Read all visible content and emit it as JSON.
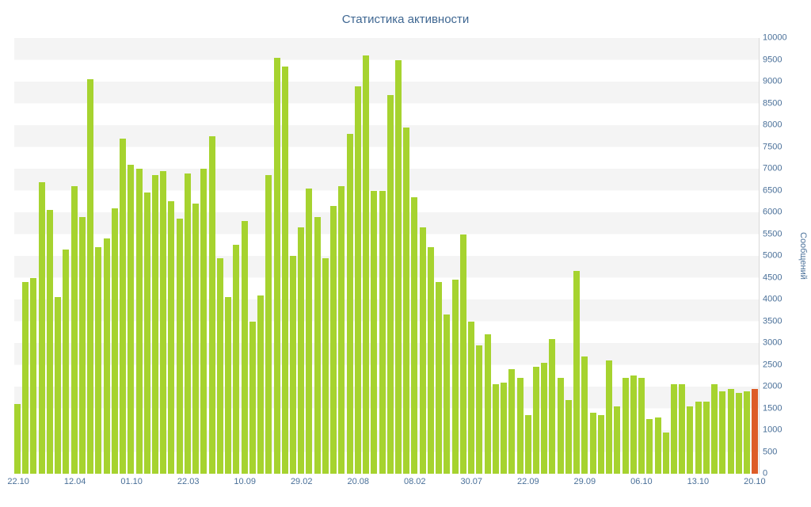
{
  "chart_data": {
    "type": "bar",
    "title": "Статистика активности",
    "ylabel": "Сообщений",
    "xlabel": "",
    "ylim": [
      0,
      10000
    ],
    "ytick_step": 500,
    "tick_every": 7,
    "x_tick_labels": [
      "22.10",
      "12.04",
      "01.10",
      "22.03",
      "10.09",
      "29.02",
      "20.08",
      "08.02",
      "30.07",
      "22.09",
      "29.09",
      "06.10",
      "13.10",
      "20.10"
    ],
    "values": [
      1600,
      4400,
      4500,
      6700,
      6050,
      4050,
      5150,
      6600,
      5900,
      9050,
      5200,
      5400,
      6100,
      7700,
      7100,
      7000,
      6450,
      6850,
      6950,
      6250,
      5850,
      6900,
      6200,
      7000,
      7750,
      4950,
      4050,
      5250,
      5800,
      3500,
      4100,
      6850,
      9550,
      9350,
      5000,
      5650,
      6550,
      5900,
      4950,
      6150,
      6600,
      7800,
      8900,
      9600,
      6500,
      6500,
      8700,
      9500,
      7950,
      6350,
      5650,
      5200,
      4400,
      3650,
      4450,
      5500,
      3500,
      2950,
      3200,
      2050,
      2100,
      2400,
      2200,
      1350,
      2450,
      2550,
      3100,
      2200,
      1700,
      4650,
      2700,
      1400,
      1350,
      2600,
      1550,
      2200,
      2250,
      2200,
      1250,
      1300,
      950,
      2050,
      2050,
      1550,
      1650,
      1650,
      2050,
      1900,
      1950,
      1850,
      1900,
      1950
    ],
    "bar_color": "#a6d32f",
    "highlight_color": "#dd5c28",
    "highlight_index": 91,
    "title_color": "#3f6792",
    "axis_label_color": "#4a7099",
    "band_color": "#f4f4f4",
    "background_color": "#ffffff",
    "grid": "alternating-horizontal-bands",
    "legend": "none"
  }
}
